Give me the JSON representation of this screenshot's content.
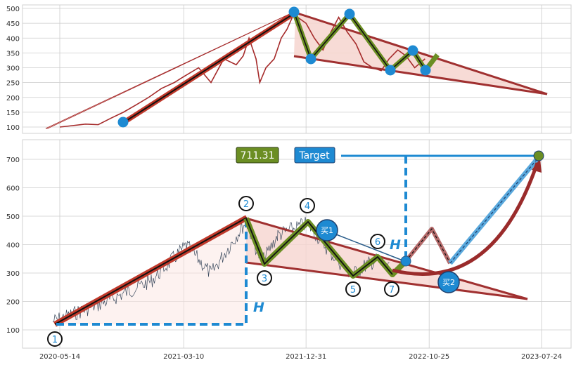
{
  "colors": {
    "price": "#a52a2a",
    "price_lower": "#3b4a5e",
    "trend_red": "#c0392b",
    "trend_dark": "#a03030",
    "zigzag_green": "#6b8e23",
    "marker_blue": "#1e8ad2",
    "fill_pink": "#f6d5cf",
    "grid": "#cccccc",
    "dash_blue": "#1e8ad2",
    "price_label_bg": "#6b8e23",
    "target_bg": "#1e8ad2"
  },
  "chart_data": [
    {
      "type": "line",
      "panel": "top",
      "title": "",
      "xlabel": "",
      "ylabel": "",
      "ylim": [
        70,
        510
      ],
      "yticks": [
        100,
        150,
        200,
        250,
        300,
        350,
        400,
        450,
        500
      ],
      "grid": true,
      "series": [
        {
          "x": [
            "2020-05-14",
            "2020-06-15",
            "2020-07-15",
            "2020-08-15",
            "2020-09-15",
            "2020-10-15",
            "2020-11-15",
            "2020-12-15",
            "2021-01-15",
            "2021-02-15",
            "2021-03-10",
            "2021-04-15",
            "2021-05-15",
            "2021-06-15",
            "2021-07-15",
            "2021-08-01",
            "2021-08-15",
            "2021-09-01",
            "2021-09-10",
            "2021-09-25",
            "2021-10-15",
            "2021-11-01",
            "2021-11-15",
            "2021-12-01",
            "2021-12-31",
            "2022-01-20",
            "2022-02-10",
            "2022-03-01",
            "2022-03-20",
            "2022-04-10",
            "2022-05-01",
            "2022-05-20",
            "2022-06-10",
            "2022-07-01",
            "2022-07-20",
            "2022-08-10",
            "2022-08-30",
            "2022-09-20",
            "2022-10-15"
          ],
          "values": [
            100,
            105,
            110,
            108,
            130,
            150,
            175,
            200,
            230,
            250,
            270,
            300,
            250,
            330,
            310,
            340,
            400,
            330,
            250,
            300,
            330,
            400,
            430,
            480,
            450,
            400,
            360,
            420,
            470,
            420,
            380,
            320,
            300,
            290,
            330,
            360,
            340,
            300,
            330
          ]
        }
      ],
      "annotations": {
        "markers": [
          {
            "x": "2020-12-01",
            "y": 120
          },
          {
            "x": "2021-11-30",
            "y": 490
          },
          {
            "x": "2022-01-10",
            "y": 332
          },
          {
            "x": "2022-03-15",
            "y": 480
          },
          {
            "x": "2022-06-01",
            "y": 290
          },
          {
            "x": "2022-07-01",
            "y": 356
          },
          {
            "x": "2022-09-05",
            "y": 290
          }
        ]
      }
    },
    {
      "type": "line",
      "panel": "bottom",
      "title": "",
      "xlabel": "",
      "ylabel": "",
      "ylim": [
        30,
        760
      ],
      "yticks": [
        100,
        200,
        300,
        400,
        500,
        600,
        700
      ],
      "xticks": [
        "2020-05-14",
        "2021-03-10",
        "2021-12-31",
        "2022-10-25",
        "2023-07-24"
      ],
      "grid": true,
      "price_label": "711.31",
      "target_label": "Target",
      "pattern_labels": [
        "1",
        "2",
        "3",
        "4",
        "5",
        "6",
        "7"
      ],
      "buy_labels": [
        "买1",
        "买2"
      ],
      "height_label": "H",
      "pivots": [
        {
          "label": "1",
          "x": "2020-05-14",
          "y": 118
        },
        {
          "label": "2",
          "x": "2021-09-10",
          "y": 495
        },
        {
          "label": "3",
          "x": "2021-10-20",
          "y": 340
        },
        {
          "label": "4",
          "x": "2021-12-20",
          "y": 488
        },
        {
          "label": "5",
          "x": "2022-03-20",
          "y": 305
        },
        {
          "label": "6",
          "x": "2022-05-30",
          "y": 348
        },
        {
          "label": "7",
          "x": "2022-06-25",
          "y": 300
        }
      ],
      "target_value": 711.31
    }
  ]
}
